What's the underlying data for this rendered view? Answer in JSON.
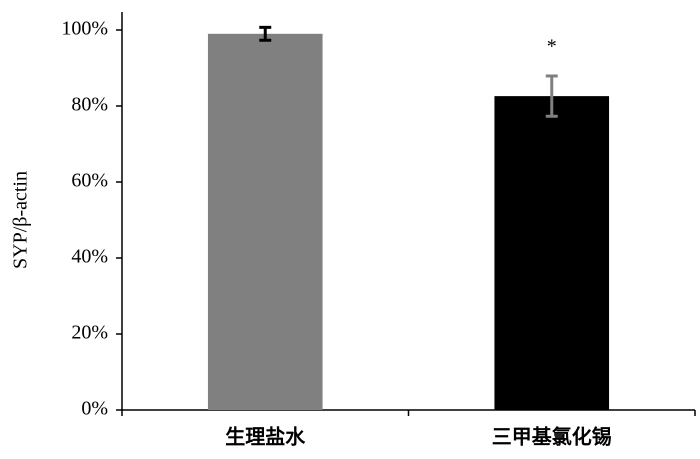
{
  "chart_data": {
    "type": "bar",
    "y_label": "SYP/β-actin",
    "categories": [
      "生理盐水",
      "三甲基氯化锡"
    ],
    "values": [
      99,
      82.6
    ],
    "errors": [
      1.7,
      5.3
    ],
    "colors": [
      "#808080",
      "#000000"
    ],
    "error_colors": [
      "#000000",
      "#808080"
    ],
    "annotations": [
      {
        "category": 1,
        "text": "*"
      }
    ],
    "ylim": [
      0,
      100
    ],
    "yticks": [
      {
        "value": 0,
        "label": "0%"
      },
      {
        "value": 20,
        "label": "20%"
      },
      {
        "value": 40,
        "label": "40%"
      },
      {
        "value": 60,
        "label": "60%"
      },
      {
        "value": 80,
        "label": "80%"
      },
      {
        "value": 100,
        "label": "100%"
      }
    ]
  }
}
